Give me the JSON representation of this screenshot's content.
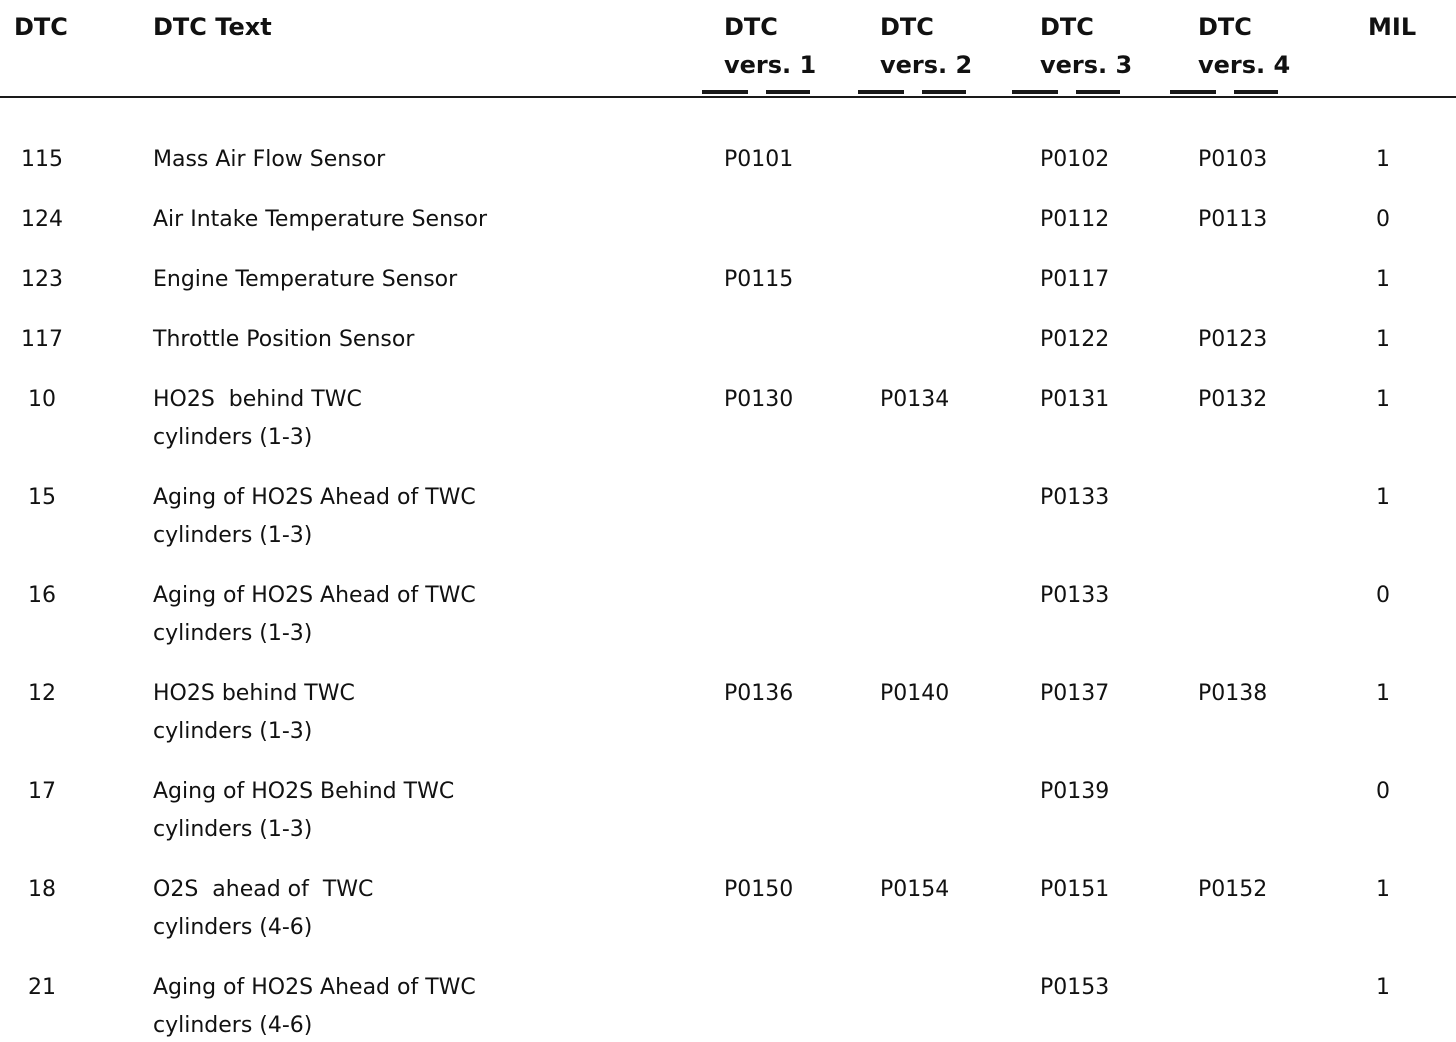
{
  "table": {
    "headers": {
      "dtc": "DTC",
      "text": "DTC Text",
      "v1_line1": "DTC",
      "v1_line2": "vers. 1",
      "v2_line1": "DTC",
      "v2_line2": "vers. 2",
      "v3_line1": "DTC",
      "v3_line2": "vers. 3",
      "v4_line1": "DTC",
      "v4_line2": "vers. 4",
      "mil": "MIL"
    },
    "rows": [
      {
        "dtc": "115",
        "text": [
          "Mass Air Flow Sensor"
        ],
        "v1": "P0101",
        "v2": "",
        "v3": "P0102",
        "v4": "P0103",
        "mil": "1"
      },
      {
        "dtc": "124",
        "text": [
          "Air Intake Temperature Sensor"
        ],
        "v1": "",
        "v2": "",
        "v3": "P0112",
        "v4": "P0113",
        "mil": "0"
      },
      {
        "dtc": "123",
        "text": [
          "Engine Temperature Sensor"
        ],
        "v1": "P0115",
        "v2": "",
        "v3": "P0117",
        "v4": "",
        "mil": "1"
      },
      {
        "dtc": "117",
        "text": [
          "Throttle Position Sensor"
        ],
        "v1": "",
        "v2": "",
        "v3": "P0122",
        "v4": "P0123",
        "mil": "1"
      },
      {
        "dtc": "10",
        "text": [
          "HO2S  behind TWC",
          "cylinders (1-3)"
        ],
        "v1": "P0130",
        "v2": "P0134",
        "v3": "P0131",
        "v4": "P0132",
        "mil": "1"
      },
      {
        "dtc": "15",
        "text": [
          "Aging of HO2S Ahead of TWC",
          "cylinders (1-3)"
        ],
        "v1": "",
        "v2": "",
        "v3": "P0133",
        "v4": "",
        "mil": "1"
      },
      {
        "dtc": "16",
        "text": [
          "Aging of HO2S Ahead of TWC",
          "cylinders (1-3)"
        ],
        "v1": "",
        "v2": "",
        "v3": "P0133",
        "v4": "",
        "mil": "0"
      },
      {
        "dtc": "12",
        "text": [
          "HO2S behind TWC",
          "cylinders (1-3)"
        ],
        "v1": "P0136",
        "v2": "P0140",
        "v3": "P0137",
        "v4": "P0138",
        "mil": "1"
      },
      {
        "dtc": "17",
        "text": [
          "Aging of HO2S Behind TWC",
          "cylinders (1-3)"
        ],
        "v1": "",
        "v2": "",
        "v3": "P0139",
        "v4": "",
        "mil": "0"
      },
      {
        "dtc": "18",
        "text": [
          "O2S  ahead of  TWC",
          "cylinders (4-6)"
        ],
        "v1": "P0150",
        "v2": "P0154",
        "v3": "P0151",
        "v4": "P0152",
        "mil": "1"
      },
      {
        "dtc": "21",
        "text": [
          "Aging of HO2S Ahead of TWC",
          "cylinders (4-6)"
        ],
        "v1": "",
        "v2": "",
        "v3": "P0153",
        "v4": "",
        "mil": "1"
      }
    ]
  },
  "colors": {
    "background": "#ffffff",
    "text": "#111111",
    "rule": "#1a1a1a"
  }
}
